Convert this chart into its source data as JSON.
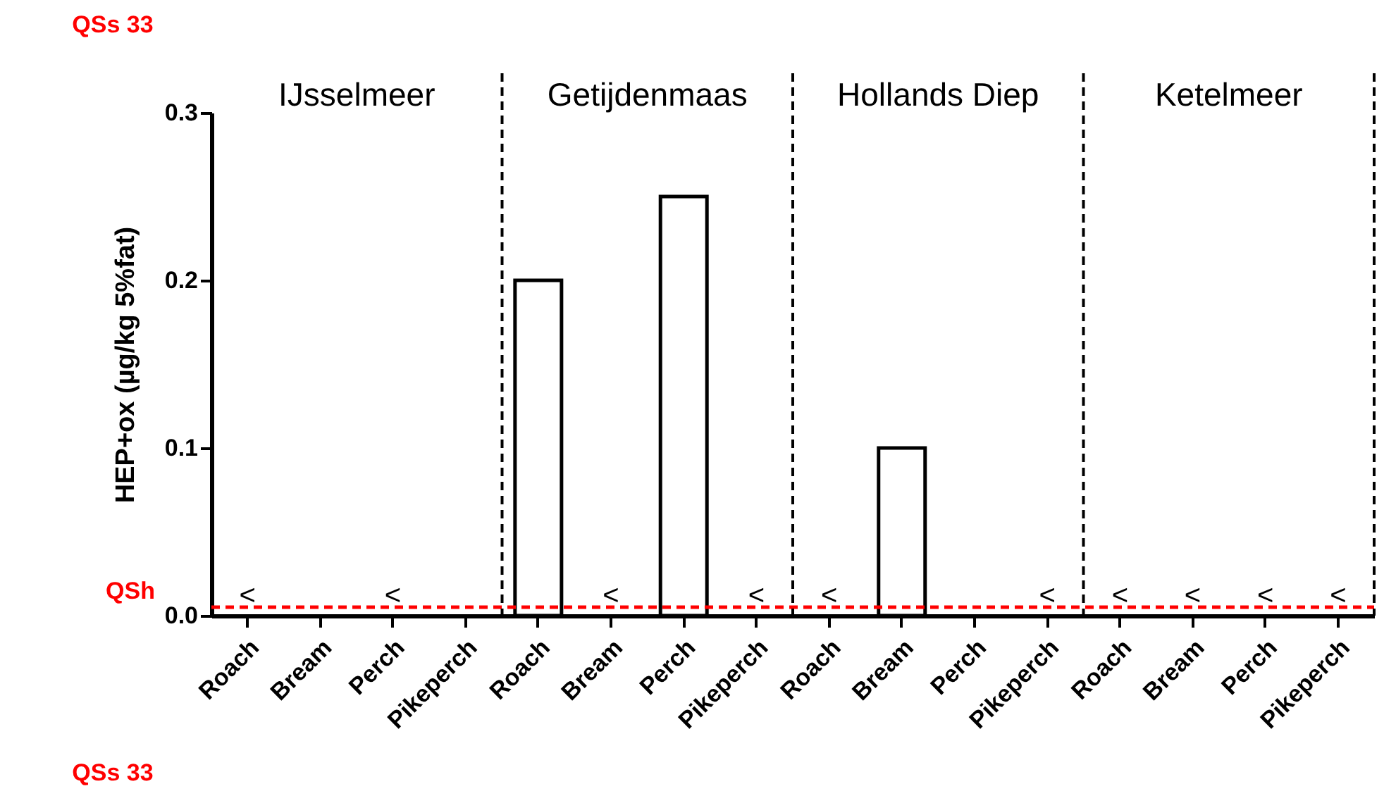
{
  "chart_data": {
    "type": "bar",
    "ylabel": "HEP+ox (µg/kg 5%fat)",
    "categories": [
      "Roach",
      "Bream",
      "Perch",
      "Pikeperch",
      "Roach",
      "Bream",
      "Perch",
      "Pikeperch",
      "Roach",
      "Bream",
      "Perch",
      "Pikeperch",
      "Roach",
      "Bream",
      "Perch",
      "Pikeperch"
    ],
    "values": [
      null,
      null,
      null,
      null,
      0.2,
      null,
      0.25,
      null,
      null,
      0.1,
      null,
      null,
      null,
      null,
      null,
      null
    ],
    "value_labels": [
      "<",
      null,
      "<",
      null,
      null,
      "<",
      null,
      "<",
      "<",
      null,
      null,
      "<",
      "<",
      "<",
      "<",
      "<"
    ],
    "color": "#ffffff",
    "ylim": [
      0,
      0.3
    ],
    "yticks": [
      {
        "value": 0,
        "label": "0.0"
      },
      0.1,
      0.2,
      0.3
    ],
    "ref_lines": [
      {
        "axis": "y",
        "value": 0.005,
        "label": "QSh",
        "color": "#ff0000",
        "line_style": "dashed"
      }
    ],
    "annotations": [
      "IJsselmeer",
      "Getijdenmaas",
      "Hollands Diep",
      "Ketelmeer",
      "QSs 33",
      "QSs 33"
    ],
    "grid": false
  }
}
